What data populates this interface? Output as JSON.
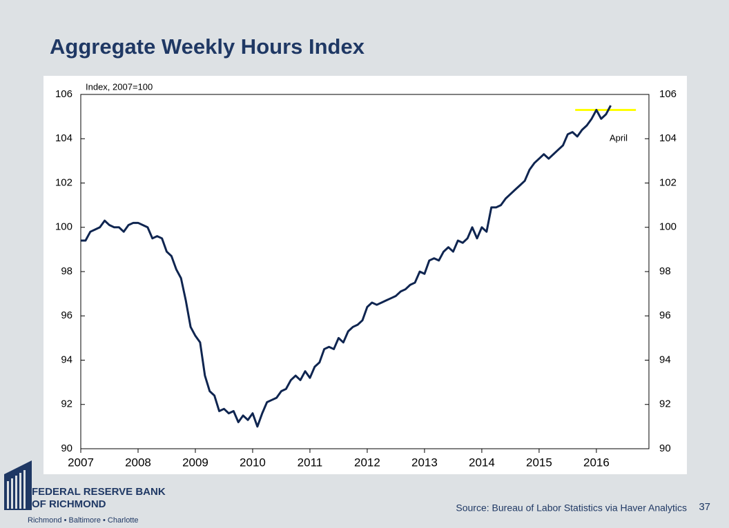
{
  "slide": {
    "title": "Aggregate Weekly Hours Index",
    "logo_line1": "FEDERAL RESERVE BANK",
    "logo_line2": "OF RICHMOND",
    "logo_cities": "Richmond • Baltimore • Charlotte",
    "source": "Source: Bureau of Labor Statistics via Haver Analytics",
    "page_number": "37"
  },
  "chart_data": {
    "type": "line",
    "y_label": "Index, 2007=100",
    "annotation": "April",
    "color": "#0f2550",
    "x": [
      2007,
      2007.083,
      2007.167,
      2007.25,
      2007.333,
      2007.417,
      2007.5,
      2007.583,
      2007.667,
      2007.75,
      2007.833,
      2007.917,
      2008,
      2008.083,
      2008.167,
      2008.25,
      2008.333,
      2008.417,
      2008.5,
      2008.583,
      2008.667,
      2008.75,
      2008.833,
      2008.917,
      2009,
      2009.083,
      2009.167,
      2009.25,
      2009.333,
      2009.417,
      2009.5,
      2009.583,
      2009.667,
      2009.75,
      2009.833,
      2009.917,
      2010,
      2010.083,
      2010.167,
      2010.25,
      2010.333,
      2010.417,
      2010.5,
      2010.583,
      2010.667,
      2010.75,
      2010.833,
      2010.917,
      2011,
      2011.083,
      2011.167,
      2011.25,
      2011.333,
      2011.417,
      2011.5,
      2011.583,
      2011.667,
      2011.75,
      2011.833,
      2011.917,
      2012,
      2012.083,
      2012.167,
      2012.25,
      2012.333,
      2012.417,
      2012.5,
      2012.583,
      2012.667,
      2012.75,
      2012.833,
      2012.917,
      2013,
      2013.083,
      2013.167,
      2013.25,
      2013.333,
      2013.417,
      2013.5,
      2013.583,
      2013.667,
      2013.75,
      2013.833,
      2013.917,
      2014,
      2014.083,
      2014.167,
      2014.25,
      2014.333,
      2014.417,
      2014.5,
      2014.583,
      2014.667,
      2014.75,
      2014.833,
      2014.917,
      2015,
      2015.083,
      2015.167,
      2015.25,
      2015.333,
      2015.417,
      2015.5,
      2015.583,
      2015.667,
      2015.75,
      2015.833,
      2015.917,
      2016,
      2016.083,
      2016.167,
      2016.25
    ],
    "values": [
      99.4,
      99.4,
      99.8,
      99.9,
      100.0,
      100.3,
      100.1,
      100.0,
      100.0,
      99.8,
      100.1,
      100.2,
      100.2,
      100.1,
      100.0,
      99.5,
      99.6,
      99.5,
      98.9,
      98.7,
      98.1,
      97.7,
      96.7,
      95.5,
      95.1,
      94.8,
      93.3,
      92.6,
      92.4,
      91.7,
      91.8,
      91.6,
      91.7,
      91.2,
      91.5,
      91.3,
      91.6,
      91.0,
      91.6,
      92.1,
      92.2,
      92.3,
      92.6,
      92.7,
      93.1,
      93.3,
      93.1,
      93.5,
      93.2,
      93.7,
      93.9,
      94.5,
      94.6,
      94.5,
      95.0,
      94.8,
      95.3,
      95.5,
      95.6,
      95.8,
      96.4,
      96.6,
      96.5,
      96.6,
      96.7,
      96.8,
      96.9,
      97.1,
      97.2,
      97.4,
      97.5,
      98.0,
      97.9,
      98.5,
      98.6,
      98.5,
      98.9,
      99.1,
      98.9,
      99.4,
      99.3,
      99.5,
      100.0,
      99.5,
      100.0,
      99.8,
      100.9,
      100.9,
      101.0,
      101.3,
      101.5,
      101.7,
      101.9,
      102.1,
      102.6,
      102.9,
      103.1,
      103.3,
      103.1,
      103.3,
      103.5,
      103.7,
      104.2,
      104.3,
      104.1,
      104.4,
      104.6,
      104.9,
      105.3,
      104.9,
      105.1,
      105.5
    ],
    "reference_line": {
      "value": 105.3,
      "x": [
        2015.63,
        2016.69
      ],
      "color": "#ffff00"
    },
    "xlim": [
      2007,
      2016.917
    ],
    "xticks": [
      2007,
      2008,
      2009,
      2010,
      2011,
      2012,
      2013,
      2014,
      2015,
      2016
    ],
    "ylim": [
      90,
      106
    ],
    "yticks": [
      90,
      92,
      94,
      96,
      98,
      100,
      102,
      104,
      106
    ],
    "y2lim": [
      90,
      106
    ],
    "y2ticks": [
      90,
      92,
      94,
      96,
      98,
      100,
      102,
      104,
      106
    ]
  }
}
